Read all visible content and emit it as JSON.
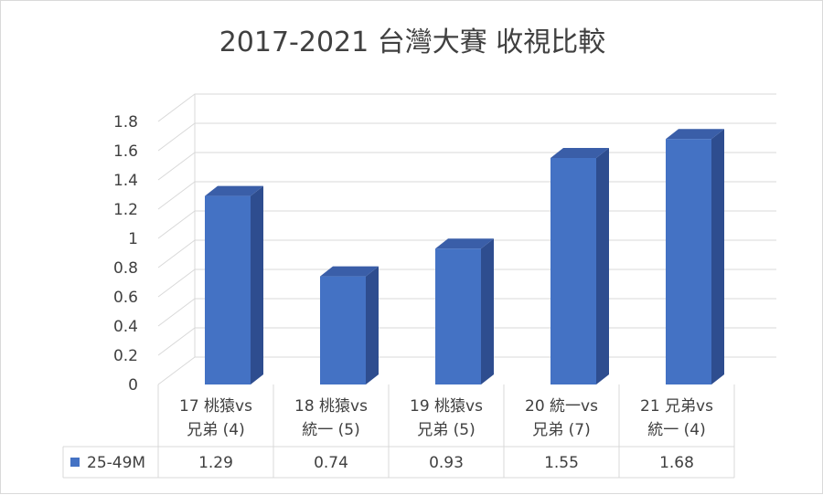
{
  "chart_data": {
    "type": "bar",
    "title": "2017-2021 台灣大賽 收視比較",
    "categories": [
      [
        "17 桃猿vs",
        "兄弟 (4)"
      ],
      [
        "18 桃猿vs",
        "統一 (5)"
      ],
      [
        "19 桃猿vs",
        "兄弟 (5)"
      ],
      [
        "20 統一vs",
        "兄弟 (7)"
      ],
      [
        "21 兄弟vs",
        "統一 (4)"
      ]
    ],
    "series": [
      {
        "name": "25-49M",
        "values": [
          1.29,
          0.74,
          0.93,
          1.55,
          1.68
        ],
        "labels": [
          "1.29",
          "0.74",
          "0.93",
          "1.55",
          "1.68"
        ],
        "color": "#4472c4"
      }
    ],
    "yticks": [
      "0",
      "0.2",
      "0.4",
      "0.6",
      "0.8",
      "1",
      "1.2",
      "1.4",
      "1.6",
      "1.8"
    ],
    "ylim": [
      0,
      1.8
    ],
    "style": "3d-column",
    "grid": true,
    "data_table": true
  }
}
